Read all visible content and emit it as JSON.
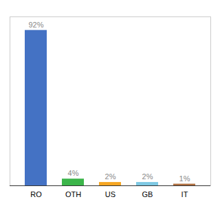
{
  "chart_data": {
    "type": "bar",
    "categories": [
      "RO",
      "OTH",
      "US",
      "GB",
      "IT"
    ],
    "values": [
      92,
      4,
      2,
      2,
      1
    ],
    "value_labels": [
      "92%",
      "4%",
      "2%",
      "2%",
      "1%"
    ],
    "colors": [
      "#4472c4",
      "#3cb54a",
      "#f5a623",
      "#7ec8e3",
      "#b07040"
    ],
    "ylim": [
      0,
      100
    ],
    "data_labels": true,
    "tick_labels": "x",
    "grid": false
  }
}
